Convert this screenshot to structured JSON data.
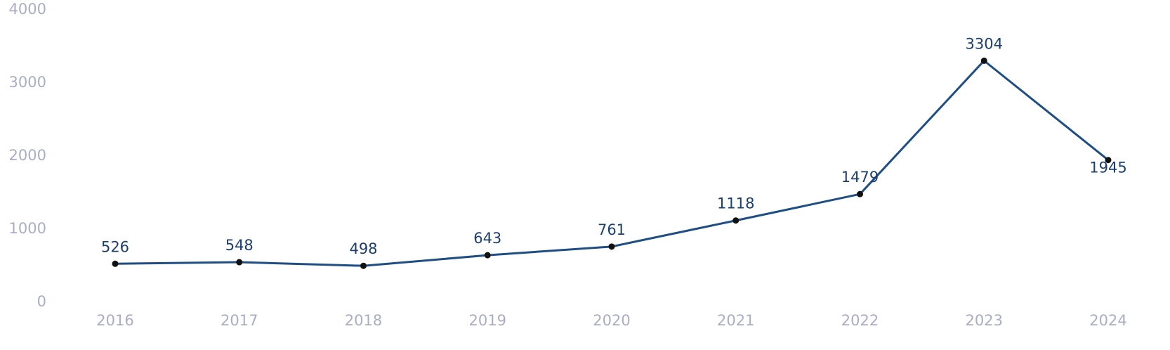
{
  "chart_data": {
    "type": "line",
    "categories": [
      "2016",
      "2017",
      "2018",
      "2019",
      "2020",
      "2021",
      "2022",
      "2023",
      "2024"
    ],
    "values": [
      526,
      548,
      498,
      643,
      761,
      1118,
      1479,
      3304,
      1945
    ],
    "color": "#1f4e85",
    "marker_color": "#111111",
    "ylim": [
      0,
      4000
    ],
    "yticks": [
      0,
      1000,
      2000,
      3000,
      4000
    ],
    "grid": false
  }
}
